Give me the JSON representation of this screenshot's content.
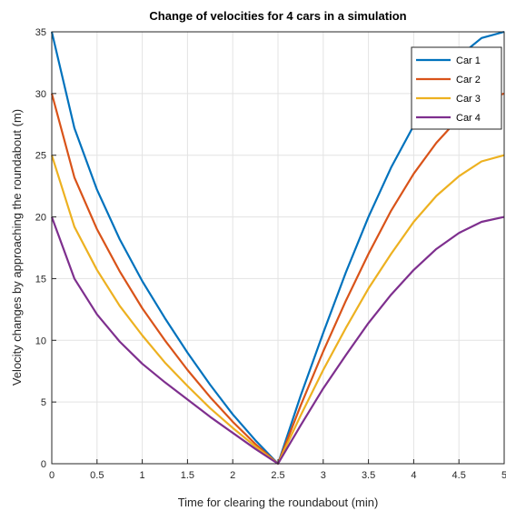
{
  "chart_data": {
    "type": "line",
    "title": "Change of velocities for 4 cars in a simulation",
    "xlabel": "Time for clearing the roundabout (min)",
    "ylabel": "Velocity changes by approaching the roundabout (m)",
    "xlim": [
      0,
      5
    ],
    "ylim": [
      0,
      35
    ],
    "xticks": [
      0,
      0.5,
      1,
      1.5,
      2,
      2.5,
      3,
      3.5,
      4,
      4.5,
      5
    ],
    "xtick_labels": [
      "0",
      "0.5",
      "1",
      "1.5",
      "2",
      "2.5",
      "3",
      "3.5",
      "4",
      "4.5",
      "5"
    ],
    "yticks": [
      0,
      5,
      10,
      15,
      20,
      25,
      30,
      35
    ],
    "ytick_labels": [
      "0",
      "5",
      "10",
      "15",
      "20",
      "25",
      "30",
      "35"
    ],
    "grid": true,
    "legend_position": "top-right",
    "x": [
      0,
      0.25,
      0.5,
      0.75,
      1,
      1.25,
      1.5,
      1.75,
      2,
      2.25,
      2.5,
      2.75,
      3,
      3.25,
      3.5,
      3.75,
      4,
      4.25,
      4.5,
      4.75,
      5
    ],
    "series": [
      {
        "name": "Car 1",
        "color": "#0072BD",
        "values": [
          35,
          27.2,
          22.2,
          18.2,
          14.8,
          11.8,
          9,
          6.4,
          4,
          1.9,
          0,
          5.5,
          10.6,
          15.5,
          20,
          24,
          27.4,
          30.5,
          33,
          34.5,
          35
        ]
      },
      {
        "name": "Car 2",
        "color": "#D95319",
        "values": [
          30,
          23.2,
          19,
          15.6,
          12.6,
          10,
          7.6,
          5.4,
          3.4,
          1.6,
          0,
          4.7,
          9.1,
          13.2,
          17,
          20.5,
          23.5,
          26,
          28,
          29.4,
          30
        ]
      },
      {
        "name": "Car 3",
        "color": "#EDB120",
        "values": [
          25,
          19.2,
          15.7,
          12.8,
          10.4,
          8.2,
          6.3,
          4.5,
          2.9,
          1.4,
          0,
          3.9,
          7.6,
          11,
          14.2,
          17,
          19.6,
          21.7,
          23.3,
          24.5,
          25
        ]
      },
      {
        "name": "Car 4",
        "color": "#7E2F8E",
        "values": [
          20,
          15,
          12.1,
          9.9,
          8.1,
          6.6,
          5.2,
          3.8,
          2.5,
          1.2,
          0,
          3.1,
          6.1,
          8.8,
          11.4,
          13.7,
          15.7,
          17.4,
          18.7,
          19.6,
          20
        ]
      }
    ]
  }
}
